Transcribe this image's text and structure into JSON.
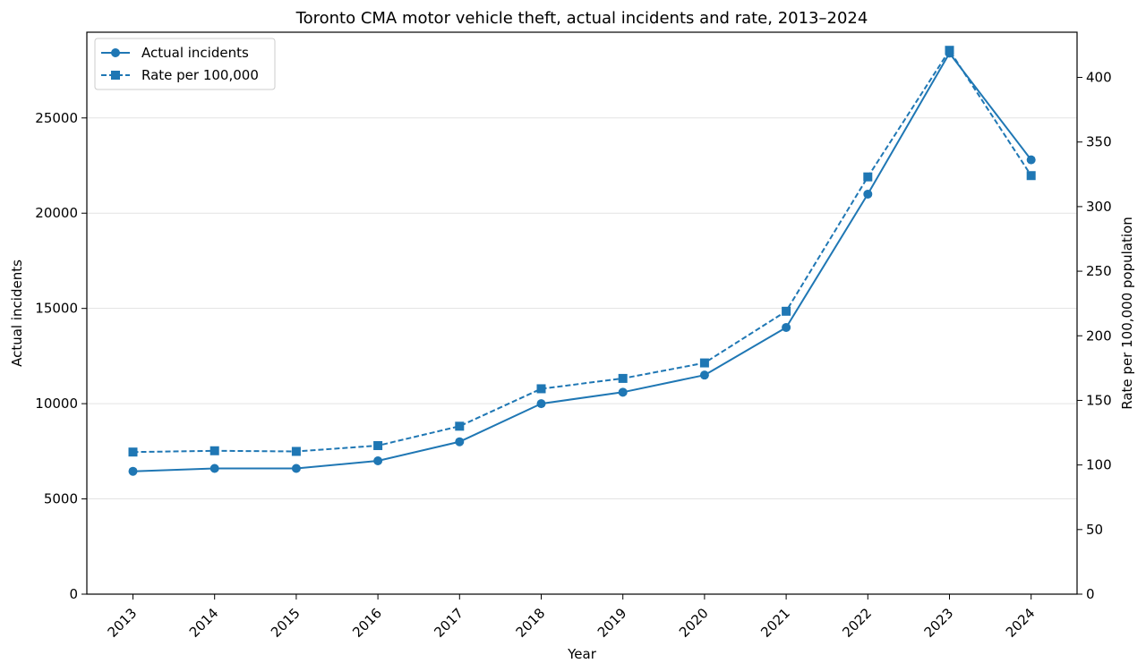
{
  "chart_data": {
    "type": "line",
    "title": "Toronto CMA motor vehicle theft, actual incidents and rate, 2013–2024",
    "xlabel": "Year",
    "ylabel_left": "Actual incidents",
    "ylabel_right": "Rate per 100,000 population",
    "categories": [
      "2013",
      "2014",
      "2015",
      "2016",
      "2017",
      "2018",
      "2019",
      "2020",
      "2021",
      "2022",
      "2023",
      "2024"
    ],
    "ylim_left": [
      0,
      29500
    ],
    "yticks_left": [
      0,
      5000,
      10000,
      15000,
      20000,
      25000
    ],
    "ylim_right": [
      0,
      435
    ],
    "yticks_right": [
      0,
      50,
      100,
      150,
      200,
      250,
      300,
      350,
      400
    ],
    "grid": "horizontal",
    "legend_position": "top-left",
    "series": [
      {
        "name": "Actual incidents",
        "axis": "left",
        "line_style": "solid",
        "marker": "circle",
        "color": "#1f77b4",
        "values": [
          6450,
          6600,
          6600,
          7000,
          8000,
          10000,
          10600,
          11500,
          14000,
          21000,
          28400,
          22800
        ]
      },
      {
        "name": "Rate per 100,000",
        "axis": "right",
        "line_style": "dashed",
        "marker": "square",
        "color": "#1f77b4",
        "values": [
          110,
          111,
          110.5,
          115,
          130,
          159,
          167,
          179,
          219,
          323,
          421,
          324
        ]
      }
    ]
  }
}
